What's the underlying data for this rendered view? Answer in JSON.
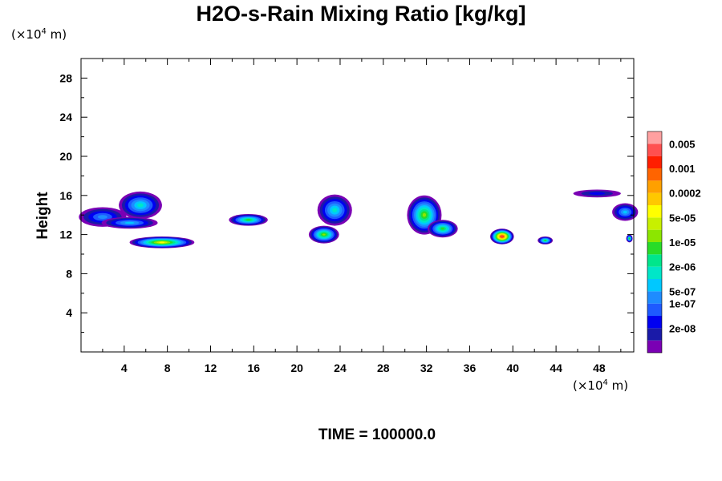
{
  "chart_data": {
    "type": "heatmap",
    "title": "H2O-s-Rain Mixing Ratio [kg/kg]",
    "ylabel": "Height",
    "x_unit": "10^4 m",
    "y_unit": "10^4 m",
    "xlim": [
      0,
      51.2
    ],
    "ylim": [
      0,
      30
    ],
    "x_ticks": [
      4,
      8,
      12,
      16,
      20,
      24,
      28,
      32,
      36,
      40,
      44,
      48
    ],
    "y_ticks": [
      4,
      8,
      12,
      16,
      20,
      24,
      28
    ],
    "colorbar": {
      "levels": [
        {
          "label": "",
          "color": "#7a00b4"
        },
        {
          "label": "2e-08",
          "color": "#1a1aa8"
        },
        {
          "label": "",
          "color": "#0000f0"
        },
        {
          "label": "1e-07",
          "color": "#1e5aff"
        },
        {
          "label": "5e-07",
          "color": "#1e8cff"
        },
        {
          "label": "",
          "color": "#00c8ff"
        },
        {
          "label": "2e-06",
          "color": "#00e6c8"
        },
        {
          "label": "",
          "color": "#00e68c"
        },
        {
          "label": "1e-05",
          "color": "#28dc28"
        },
        {
          "label": "",
          "color": "#8ce600"
        },
        {
          "label": "5e-05",
          "color": "#c8f000"
        },
        {
          "label": "",
          "color": "#ffff00"
        },
        {
          "label": "0.0002",
          "color": "#ffc800"
        },
        {
          "label": "",
          "color": "#ffa000"
        },
        {
          "label": "0.001",
          "color": "#ff6400"
        },
        {
          "label": "",
          "color": "#ff1e00"
        },
        {
          "label": "0.005",
          "color": "#ff5050"
        },
        {
          "label": "",
          "color": "#ffa0a0"
        }
      ]
    },
    "cells": [
      {
        "x": 2.0,
        "y": 13.8,
        "rx": 2.2,
        "ry": 1.0,
        "level": 4
      },
      {
        "x": 5.5,
        "y": 15.0,
        "rx": 2.0,
        "ry": 1.4,
        "level": 6
      },
      {
        "x": 4.5,
        "y": 13.2,
        "rx": 2.6,
        "ry": 0.6,
        "level": 5
      },
      {
        "x": 7.5,
        "y": 11.2,
        "rx": 3.0,
        "ry": 0.6,
        "level": 11
      },
      {
        "x": 15.5,
        "y": 13.5,
        "rx": 1.8,
        "ry": 0.6,
        "level": 8
      },
      {
        "x": 23.5,
        "y": 14.5,
        "rx": 1.6,
        "ry": 1.6,
        "level": 6
      },
      {
        "x": 22.5,
        "y": 12.0,
        "rx": 1.4,
        "ry": 0.9,
        "level": 9
      },
      {
        "x": 31.8,
        "y": 14.0,
        "rx": 1.6,
        "ry": 2.0,
        "level": 9
      },
      {
        "x": 33.5,
        "y": 12.6,
        "rx": 1.4,
        "ry": 0.9,
        "level": 8
      },
      {
        "x": 39.0,
        "y": 11.8,
        "rx": 1.1,
        "ry": 0.8,
        "level": 16
      },
      {
        "x": 43.0,
        "y": 11.4,
        "rx": 0.7,
        "ry": 0.4,
        "level": 8
      },
      {
        "x": 47.8,
        "y": 16.2,
        "rx": 2.2,
        "ry": 0.4,
        "level": 2
      },
      {
        "x": 50.4,
        "y": 14.3,
        "rx": 1.2,
        "ry": 0.9,
        "level": 5
      },
      {
        "x": 50.8,
        "y": 11.6,
        "rx": 0.3,
        "ry": 0.4,
        "level": 8
      }
    ]
  },
  "time_label": "TIME = 100000.0"
}
